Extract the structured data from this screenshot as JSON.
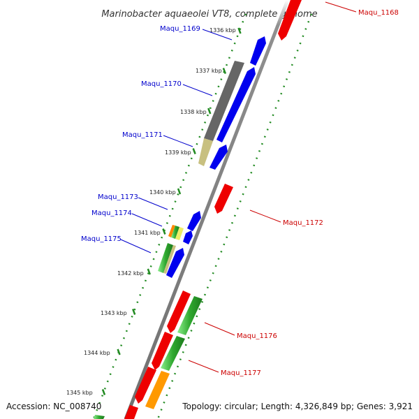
{
  "title": "Marinobacter aquaeolei VT8, complete genome",
  "footer": {
    "accession": "Accession: NC_008740",
    "topology": "Topology: circular; Length: 4,326,849 bp; Genes: 3,921"
  },
  "ticks": [
    "1336 kbp",
    "1337 kbp",
    "1338 kbp",
    "1339 kbp",
    "1340 kbp",
    "1341 kbp",
    "1342 kbp",
    "1343 kbp",
    "1344 kbp",
    "1345 kbp"
  ],
  "labels": [
    {
      "text": "Maqu_1168",
      "strand": "reverse"
    },
    {
      "text": "Maqu_1169",
      "strand": "forward"
    },
    {
      "text": "Maqu_1170",
      "strand": "forward"
    },
    {
      "text": "Maqu_1171",
      "strand": "forward"
    },
    {
      "text": "Maqu_1173",
      "strand": "forward"
    },
    {
      "text": "Maqu_1174",
      "strand": "forward"
    },
    {
      "text": "Maqu_1175",
      "strand": "forward"
    },
    {
      "text": "Maqu_1172",
      "strand": "reverse"
    },
    {
      "text": "Maqu_1176",
      "strand": "reverse"
    },
    {
      "text": "Maqu_1177",
      "strand": "reverse"
    }
  ],
  "colors": {
    "forward_label": "#0000cc",
    "reverse_label": "#cc0000",
    "forward_gene": "#0000ee",
    "reverse_gene": "#ee0000",
    "green_gene": "#33aa33",
    "orange_gene": "#ff9900",
    "gray_feature": "#666666",
    "khaki_feature": "#c8c080",
    "backbone": "#888888",
    "tick_dots": "#228b22"
  }
}
